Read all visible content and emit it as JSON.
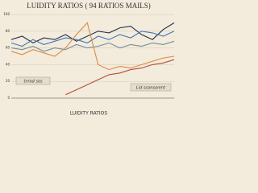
{
  "chart_data": {
    "type": "line",
    "title": "LUIDITY RATIOS ( 94 RATIOS MAILS)",
    "x_label": "LUIDITY RATIOS",
    "annotations": [
      "tnrad sos",
      "Lid sconsonmt"
    ],
    "categories": [
      null,
      null,
      null,
      null,
      null,
      null,
      null,
      null,
      null,
      null,
      null,
      null,
      null,
      null,
      null,
      null
    ],
    "series": [
      {
        "name": null,
        "color": "#1f2f4f",
        "values": [
          70,
          74,
          66,
          72,
          70,
          76,
          68,
          74,
          80,
          78,
          84,
          86,
          76,
          70,
          82,
          90
        ]
      },
      {
        "name": null,
        "color": "#3f78b8",
        "values": [
          66,
          62,
          70,
          64,
          68,
          72,
          70,
          66,
          74,
          70,
          76,
          72,
          80,
          78,
          74,
          80
        ]
      },
      {
        "name": null,
        "color": "#6f8f9a",
        "values": [
          60,
          58,
          62,
          56,
          60,
          58,
          64,
          60,
          62,
          66,
          60,
          64,
          62,
          66,
          64,
          68
        ]
      },
      {
        "name": null,
        "color": "#e08a3c",
        "values": [
          56,
          52,
          58,
          54,
          50,
          60,
          76,
          90,
          40,
          34,
          38,
          36,
          40,
          44,
          48,
          50
        ]
      },
      {
        "name": null,
        "color": "#b0503a",
        "values": [
          null,
          null,
          null,
          null,
          null,
          4,
          10,
          16,
          22,
          28,
          30,
          34,
          36,
          40,
          42,
          46
        ]
      }
    ],
    "ylim": [
      0,
      100
    ],
    "yticks": [
      0,
      20,
      40,
      60,
      80,
      100
    ],
    "grid": true
  }
}
